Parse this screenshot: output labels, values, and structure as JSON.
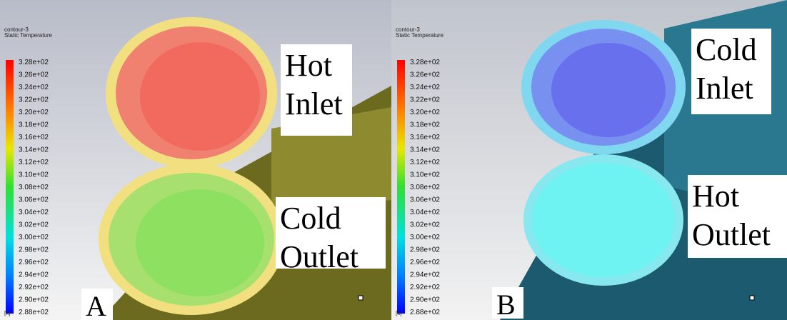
{
  "panels": [
    {
      "legend_title": "contour-3",
      "legend_subtitle": "Static Temperature",
      "legend_labels": [
        "3.28e+02",
        "3.26e+02",
        "3.24e+02",
        "3.22e+02",
        "3.20e+02",
        "3.18e+02",
        "3.16e+02",
        "3.14e+02",
        "3.12e+02",
        "3.10e+02",
        "3.08e+02",
        "3.06e+02",
        "3.04e+02",
        "3.02e+02",
        "3.00e+02",
        "2.98e+02",
        "2.96e+02",
        "2.94e+02",
        "2.92e+02",
        "2.90e+02",
        "2.88e+02"
      ],
      "unit": "[k]",
      "top_label": [
        "Hot",
        "Inlet"
      ],
      "bottom_label": [
        "Cold",
        "Outlet"
      ],
      "letter": "A"
    },
    {
      "legend_title": "contour-3",
      "legend_subtitle": "Static Temperature",
      "legend_labels": [
        "3.28e+02",
        "3.26e+02",
        "3.24e+02",
        "3.22e+02",
        "3.20e+02",
        "3.18e+02",
        "3.16e+02",
        "3.14e+02",
        "3.12e+02",
        "3.10e+02",
        "3.08e+02",
        "3.06e+02",
        "3.04e+02",
        "3.02e+02",
        "3.00e+02",
        "2.98e+02",
        "2.96e+02",
        "2.94e+02",
        "2.92e+02",
        "2.90e+02",
        "2.88e+02"
      ],
      "unit": "[k]",
      "top_label": [
        "Cold",
        "Inlet"
      ],
      "bottom_label": [
        "Hot",
        "Outlet"
      ],
      "letter": "B"
    }
  ]
}
